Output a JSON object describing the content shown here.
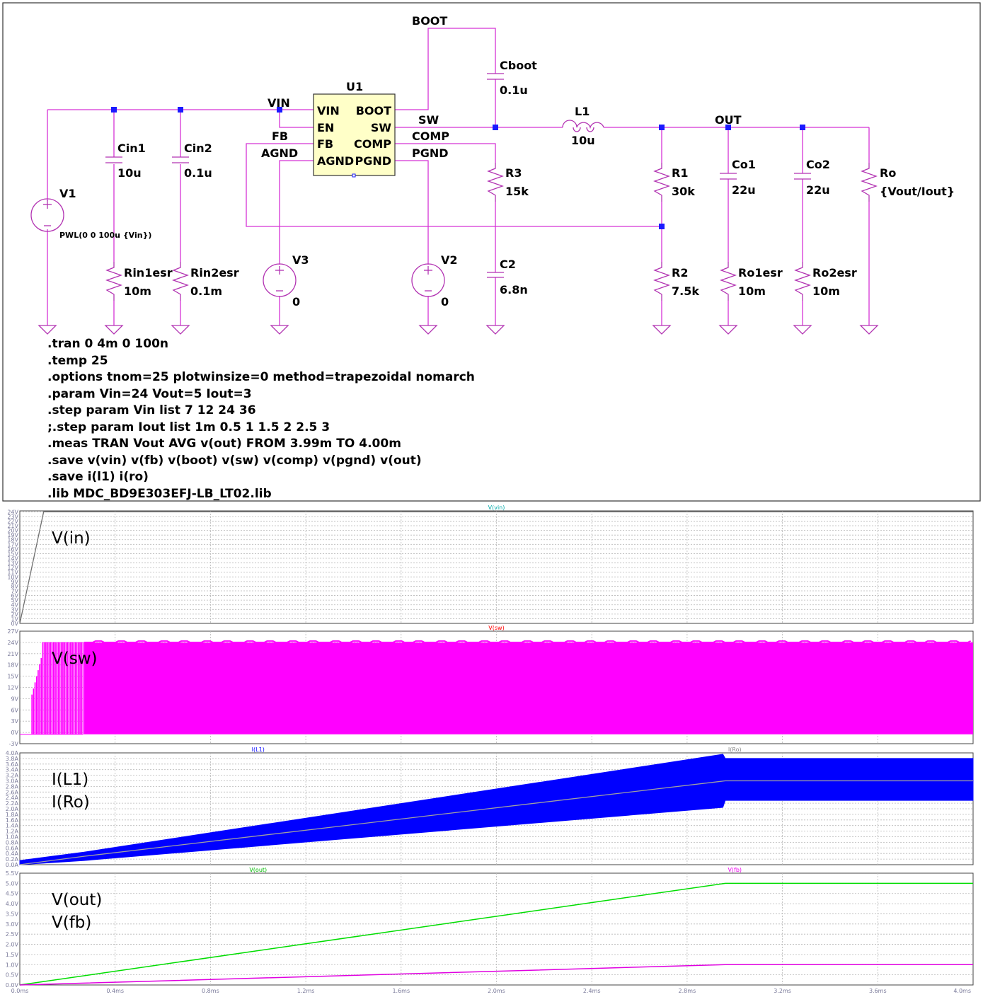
{
  "schematic": {
    "nets": {
      "boot": "BOOT",
      "vin": "VIN",
      "sw": "SW",
      "out": "OUT",
      "comp": "COMP",
      "pgnd": "PGND",
      "fb": "FB",
      "agnd": "AGND"
    },
    "ic": {
      "name": "U1",
      "pins_left": [
        "VIN",
        "EN",
        "FB",
        "AGND"
      ],
      "pins_right": [
        "BOOT",
        "SW",
        "COMP",
        "PGND"
      ]
    },
    "components": {
      "cboot": {
        "name": "Cboot",
        "value": "0.1u"
      },
      "cin1": {
        "name": "Cin1",
        "value": "10u"
      },
      "cin2": {
        "name": "Cin2",
        "value": "0.1u"
      },
      "v1": {
        "name": "V1",
        "value": "PWL(0 0 100u {Vin})"
      },
      "rin1esr": {
        "name": "Rin1esr",
        "value": "10m"
      },
      "rin2esr": {
        "name": "Rin2esr",
        "value": "0.1m"
      },
      "v3": {
        "name": "V3",
        "value": "0"
      },
      "v2": {
        "name": "V2",
        "value": "0"
      },
      "l1": {
        "name": "L1",
        "value": "10u"
      },
      "r3": {
        "name": "R3",
        "value": "15k"
      },
      "c2": {
        "name": "C2",
        "value": "6.8n"
      },
      "r1": {
        "name": "R1",
        "value": "30k"
      },
      "r2": {
        "name": "R2",
        "value": "7.5k"
      },
      "co1": {
        "name": "Co1",
        "value": "22u"
      },
      "co2": {
        "name": "Co2",
        "value": "22u"
      },
      "ro1esr": {
        "name": "Ro1esr",
        "value": "10m"
      },
      "ro2esr": {
        "name": "Ro2esr",
        "value": "10m"
      },
      "ro": {
        "name": "Ro",
        "value": "{Vout/Iout}"
      }
    },
    "directives": [
      ".tran 0 4m 0 100n",
      ".temp 25",
      ".options tnom=25 plotwinsize=0 method=trapezoidal nomarch",
      ".param Vin=24 Vout=5 Iout=3",
      ".step param Vin list 7 12 24 36",
      ";.step param Iout list 1m 0.5 1 1.5 2 2.5 3",
      ".meas TRAN Vout AVG v(out) FROM 3.99m TO 4.00m",
      ".save v(vin) v(fb) v(boot) v(sw) v(comp) v(pgnd) v(out)",
      ".save i(l1) i(ro)",
      ".lib MDC_BD9E303EFJ-LB_LT02.lib"
    ]
  },
  "colors": {
    "wire": "#d533d5",
    "junction": "#1a1aff",
    "ic_fill": "#ffffc8",
    "sw_trace": "#ff00ff",
    "il1_trace": "#0000ff",
    "iro_trace": "#a0a0a0",
    "vout_trace": "#00dd00",
    "vfb_trace": "#e000e0"
  },
  "chart_data": [
    {
      "type": "line",
      "title": "V(vin)",
      "overlay_label": "V(in)",
      "x_ticks": [],
      "y_ticks": [
        "0V",
        "1V",
        "2V",
        "3V",
        "4V",
        "5V",
        "6V",
        "7V",
        "8V",
        "9V",
        "10V",
        "11V",
        "12V",
        "13V",
        "14V",
        "15V",
        "16V",
        "17V",
        "18V",
        "19V",
        "20V",
        "21V",
        "22V",
        "23V",
        "24V"
      ],
      "ylim": [
        0,
        24.2
      ],
      "xlim": [
        0,
        4.0
      ],
      "series": [
        {
          "name": "V(vin)",
          "color": "#707070",
          "points": [
            [
              0,
              0
            ],
            [
              0.1,
              24
            ],
            [
              4.0,
              24
            ]
          ]
        }
      ]
    },
    {
      "type": "line",
      "title": "V(sw)",
      "overlay_label": "V(sw)",
      "x_ticks": [],
      "y_ticks": [
        "-3V",
        "0V",
        "3V",
        "6V",
        "9V",
        "12V",
        "15V",
        "18V",
        "21V",
        "24V",
        "27V"
      ],
      "ylim": [
        -3,
        27
      ],
      "xlim": [
        0,
        4.0
      ],
      "switching": {
        "low": -0.5,
        "high": 24,
        "startup_end_ms": 0.27,
        "band_start_ms": 0.27
      }
    },
    {
      "type": "line",
      "title_left": "I(L1)",
      "title_right": "I(Ro)",
      "overlay_labels": [
        "I(L1)",
        "I(Ro)"
      ],
      "x_ticks": [],
      "y_ticks": [
        "0.0A",
        "0.2A",
        "0.4A",
        "0.6A",
        "0.8A",
        "1.0A",
        "1.2A",
        "1.4A",
        "1.6A",
        "1.8A",
        "2.0A",
        "2.2A",
        "2.4A",
        "2.6A",
        "2.8A",
        "3.0A",
        "3.2A",
        "3.4A",
        "3.6A",
        "3.8A",
        "4.0A"
      ],
      "ylim": [
        0,
        4.0
      ],
      "xlim": [
        0,
        4.0
      ],
      "il1_envelope": {
        "x": [
          0.0,
          0.27,
          2.95,
          2.96,
          4.0
        ],
        "upper": [
          0.15,
          0.45,
          3.95,
          3.8,
          3.8
        ],
        "lower": [
          0.0,
          0.15,
          2.05,
          2.3,
          2.3
        ]
      },
      "iro": {
        "x": [
          0.0,
          0.27,
          2.96,
          4.0
        ],
        "y": [
          0.0,
          0.3,
          3.0,
          3.0
        ]
      }
    },
    {
      "type": "line",
      "title_left": "V(out)",
      "title_right": "V(fb)",
      "overlay_labels": [
        "V(out)",
        "V(fb)"
      ],
      "x_ticks": [
        "0.0ms",
        "0.4ms",
        "0.8ms",
        "1.2ms",
        "1.6ms",
        "2.0ms",
        "2.4ms",
        "2.8ms",
        "3.2ms",
        "3.6ms",
        "4.0ms"
      ],
      "y_ticks": [
        "0.0V",
        "0.5V",
        "1.0V",
        "1.5V",
        "2.0V",
        "2.5V",
        "3.0V",
        "3.5V",
        "4.0V",
        "4.5V",
        "5.0V",
        "5.5V"
      ],
      "ylim": [
        0,
        5.5
      ],
      "xlim": [
        0,
        4.0
      ],
      "series": [
        {
          "name": "V(out)",
          "color": "#00dd00",
          "points": [
            [
              0,
              0
            ],
            [
              2.96,
              5.0
            ],
            [
              4.0,
              5.0
            ]
          ]
        },
        {
          "name": "V(fb)",
          "color": "#e000e0",
          "points": [
            [
              0,
              0
            ],
            [
              2.96,
              1.0
            ],
            [
              4.0,
              1.0
            ]
          ]
        }
      ]
    }
  ]
}
